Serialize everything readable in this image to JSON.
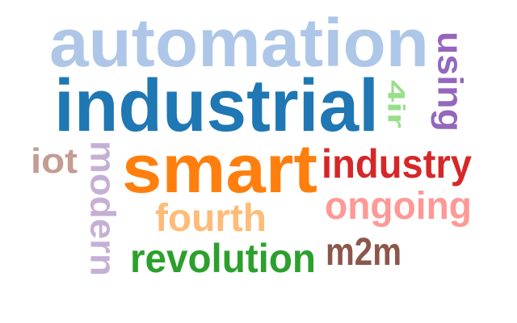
{
  "words": [
    {
      "text": "automation",
      "color": "#aec7e8"
    },
    {
      "text": "industrial",
      "color": "#1f77b4"
    },
    {
      "text": "smart",
      "color": "#ff7f0e"
    },
    {
      "text": "using",
      "color": "#9467bd"
    },
    {
      "text": "4ir",
      "color": "#98df8a"
    },
    {
      "text": "iot",
      "color": "#c49c94"
    },
    {
      "text": "modern",
      "color": "#c5b0d5"
    },
    {
      "text": "industry",
      "color": "#d62728"
    },
    {
      "text": "ongoing",
      "color": "#ff9896"
    },
    {
      "text": "fourth",
      "color": "#ffbb78"
    },
    {
      "text": "revolution",
      "color": "#2ca02c"
    },
    {
      "text": "m2m",
      "color": "#8c564b"
    }
  ]
}
